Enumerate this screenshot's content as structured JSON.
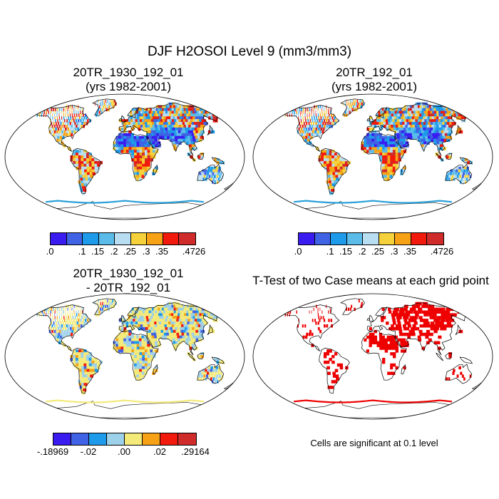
{
  "figure": {
    "title": "DJF H2OSOI Level 9 (mm3/mm3)"
  },
  "panels": [
    {
      "title_line1": "20TR_1930_192_01",
      "title_line2": "(yrs 1982-2001)"
    },
    {
      "title_line1": "20TR_192_01",
      "title_line2": "(yrs 1982-2001)"
    },
    {
      "title_line1": "20TR_1930_192_01",
      "title_line2": "- 20TR_192_01"
    },
    {
      "title_line1": "T-Test of two Case means at each grid point"
    }
  ],
  "colorbars": {
    "absolute": {
      "colors": [
        "#3a1cf0",
        "#3f63e4",
        "#1d9bea",
        "#5bbcea",
        "#b9def2",
        "#f5d23b",
        "#f6a116",
        "#f21a0c",
        "#cf2b2b"
      ],
      "labels": [
        ".0",
        ".1",
        ".15",
        ".2",
        ".25",
        ".3",
        ".35",
        ".4726"
      ]
    },
    "difference": {
      "colors": [
        "#3a1cf0",
        "#3f63e4",
        "#1d9bea",
        "#9dd0e9",
        "#f3ea7a",
        "#f6a116",
        "#f21a0c",
        "#cf2b2b"
      ],
      "labels": [
        "-.18969",
        "-.02",
        ".00",
        ".02",
        ".29164"
      ]
    }
  },
  "significance_note": "Cells are significant at 0.1 level",
  "palette": {
    "ocean": "#ffffff",
    "outline": "#000000",
    "antarctic_edge": "#2aa0d8",
    "ttest_mark": "#ee0000"
  }
}
